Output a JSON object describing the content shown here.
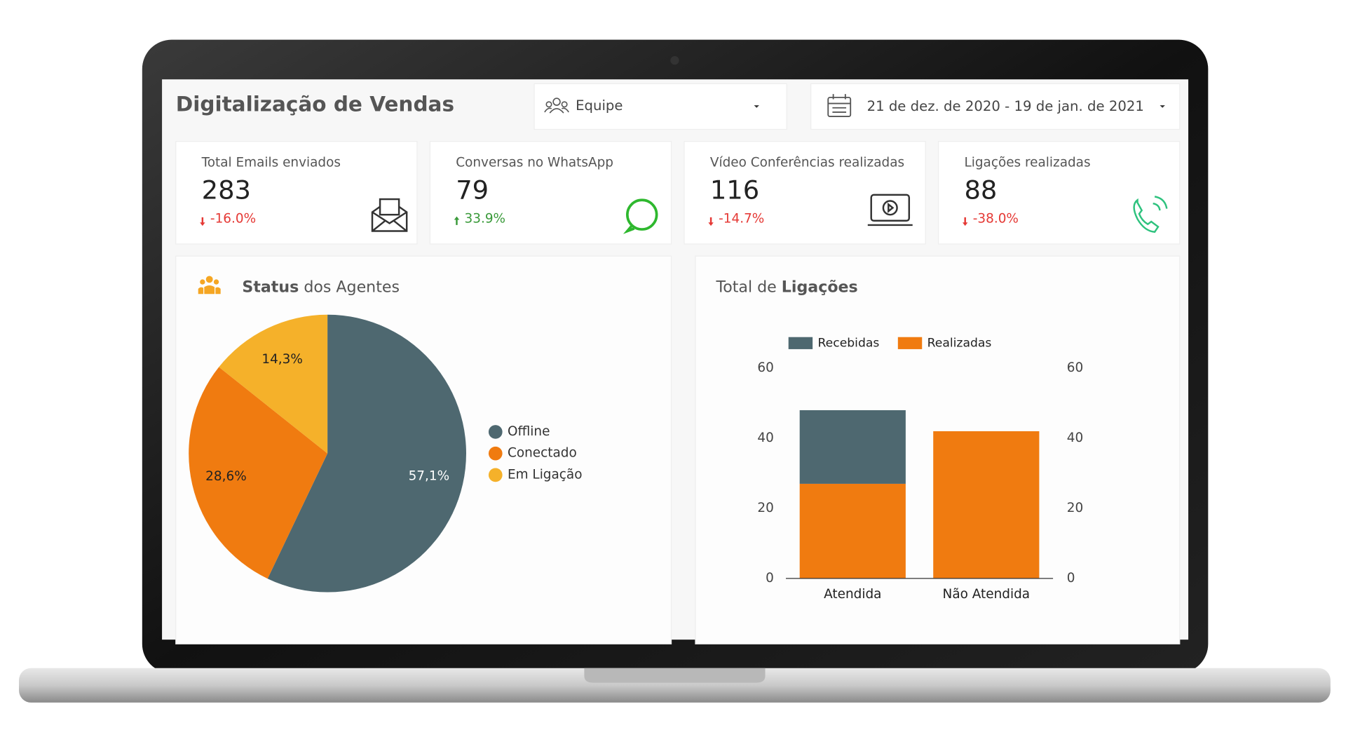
{
  "header": {
    "title": "Digitalização de Vendas",
    "team_filter": "Equipe",
    "date_range": "21 de dez. de 2020 - 19 de jan. de 2021"
  },
  "kpis": [
    {
      "title": "Total Emails enviados",
      "value": "283",
      "change": "-16.0%",
      "trend": "down"
    },
    {
      "title": "Conversas no WhatsApp",
      "value": "79",
      "change": "33.9%",
      "trend": "up"
    },
    {
      "title": "Vídeo Conferências realizadas",
      "value": "116",
      "change": "-14.7%",
      "trend": "down"
    },
    {
      "title": "Ligações realizadas",
      "value": "88",
      "change": "-38.0%",
      "trend": "down"
    }
  ],
  "chart_data": [
    {
      "type": "pie",
      "title": [
        "Status",
        "dos Agentes"
      ],
      "categories": [
        "Offline",
        "Conectado",
        "Em Ligação"
      ],
      "values": [
        57.1,
        28.6,
        14.3
      ],
      "value_labels": [
        "57,1%",
        "28,6%",
        "14,3%"
      ],
      "colors": [
        "#4e6870",
        "#f07b10",
        "#f5b12a"
      ],
      "legend": "right"
    },
    {
      "type": "bar",
      "stacked": true,
      "title": [
        "Total de",
        "Ligações"
      ],
      "categories": [
        "Atendida",
        "Não Atendida"
      ],
      "series": [
        {
          "name": "Recebidas",
          "color": "#4e6870",
          "values": [
            21,
            0
          ]
        },
        {
          "name": "Realizadas",
          "color": "#f07b10",
          "values": [
            27,
            42
          ]
        }
      ],
      "ylim": [
        0,
        60
      ],
      "yticks": [
        0,
        20,
        40,
        60
      ],
      "y2lim": [
        0,
        60
      ],
      "y2ticks": [
        0,
        20,
        40,
        60
      ],
      "legend": "top"
    }
  ]
}
